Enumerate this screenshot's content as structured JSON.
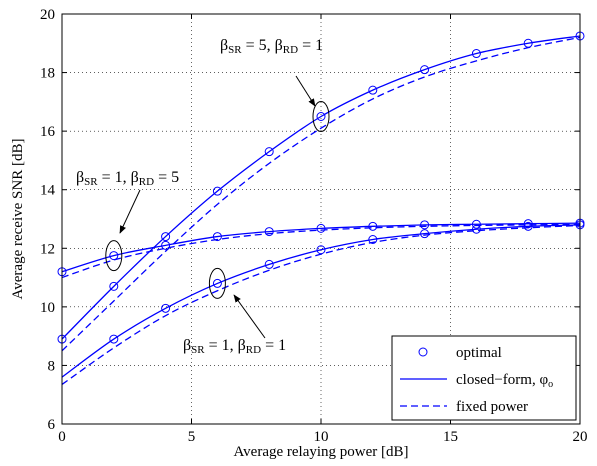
{
  "chart_data": {
    "type": "line",
    "xlabel": "Average relaying power [dB]",
    "ylabel": "Average receive SNR [dB]",
    "xlim": [
      0,
      20
    ],
    "ylim": [
      6,
      20
    ],
    "xticks": [
      "0",
      "5",
      "10",
      "15",
      "20"
    ],
    "yticks": [
      "6",
      "8",
      "10",
      "12",
      "14",
      "16",
      "18",
      "20"
    ],
    "grid": "dotted",
    "legend": {
      "placement": "bottom-right",
      "entries": [
        {
          "label": "optimal",
          "style": "circle-marker"
        },
        {
          "label": "closed−form, φ",
          "subscript": "o",
          "style": "solid"
        },
        {
          "label": "fixed power",
          "style": "dashed"
        }
      ]
    },
    "line_color": "#0000ff",
    "groups": [
      {
        "name": "β_SR = 5, β_RD = 1",
        "optimal_points": {
          "x": [
            0,
            2,
            4,
            6,
            8,
            10,
            12,
            14,
            16,
            18,
            20
          ],
          "y": [
            8.9,
            10.7,
            12.4,
            13.95,
            15.3,
            16.5,
            17.4,
            18.1,
            18.65,
            19.0,
            19.25
          ]
        },
        "closed_form": {
          "x": [
            0,
            2,
            4,
            6,
            8,
            10,
            12,
            14,
            16,
            18,
            20
          ],
          "y": [
            8.9,
            10.7,
            12.4,
            13.95,
            15.3,
            16.5,
            17.4,
            18.1,
            18.65,
            19.0,
            19.25
          ]
        },
        "fixed_power": {
          "x": [
            0,
            2,
            4,
            6,
            8,
            10,
            12,
            14,
            16,
            18,
            20
          ],
          "y": [
            8.5,
            10.2,
            11.9,
            13.5,
            14.9,
            16.1,
            17.1,
            17.85,
            18.4,
            18.85,
            19.2
          ]
        }
      },
      {
        "name": "β_SR = 1, β_RD = 5",
        "optimal_points": {
          "x": [
            0,
            2,
            4,
            6,
            8,
            10,
            12,
            14,
            16,
            18,
            20
          ],
          "y": [
            11.2,
            11.75,
            12.1,
            12.4,
            12.57,
            12.68,
            12.75,
            12.8,
            12.82,
            12.84,
            12.86
          ]
        },
        "closed_form": {
          "x": [
            0,
            2,
            4,
            6,
            8,
            10,
            12,
            14,
            16,
            18,
            20
          ],
          "y": [
            11.2,
            11.75,
            12.1,
            12.4,
            12.57,
            12.68,
            12.75,
            12.8,
            12.82,
            12.84,
            12.86
          ]
        },
        "fixed_power": {
          "x": [
            0,
            2,
            4,
            6,
            8,
            10,
            12,
            14,
            16,
            18,
            20
          ],
          "y": [
            11.0,
            11.6,
            12.0,
            12.3,
            12.5,
            12.62,
            12.7,
            12.75,
            12.78,
            12.8,
            12.82
          ]
        }
      },
      {
        "name": "β_SR = 1, β_RD = 1",
        "optimal_points": {
          "x": [
            2,
            4,
            6,
            8,
            10,
            12,
            14,
            16,
            18,
            20
          ],
          "y": [
            8.9,
            9.95,
            10.8,
            11.45,
            11.95,
            12.3,
            12.5,
            12.65,
            12.75,
            12.8
          ]
        },
        "closed_form": {
          "x": [
            0,
            2,
            4,
            6,
            8,
            10,
            12,
            14,
            16,
            18,
            20
          ],
          "y": [
            7.6,
            8.9,
            9.95,
            10.8,
            11.45,
            11.95,
            12.3,
            12.5,
            12.65,
            12.75,
            12.8
          ]
        },
        "fixed_power": {
          "x": [
            0,
            2,
            4,
            6,
            8,
            10,
            12,
            14,
            16,
            18,
            20
          ],
          "y": [
            7.35,
            8.6,
            9.7,
            10.55,
            11.25,
            11.8,
            12.2,
            12.45,
            12.6,
            12.7,
            12.78
          ]
        }
      }
    ],
    "annotations": [
      {
        "name": "annotation-sr5-rd1",
        "sr": "5",
        "rd": "1",
        "x": 10,
        "y": 16.5
      },
      {
        "name": "annotation-sr1-rd5",
        "sr": "1",
        "rd": "5",
        "x": 2,
        "y": 11.75
      },
      {
        "name": "annotation-sr1-rd1",
        "sr": "1",
        "rd": "1",
        "x": 6,
        "y": 10.8
      }
    ]
  }
}
